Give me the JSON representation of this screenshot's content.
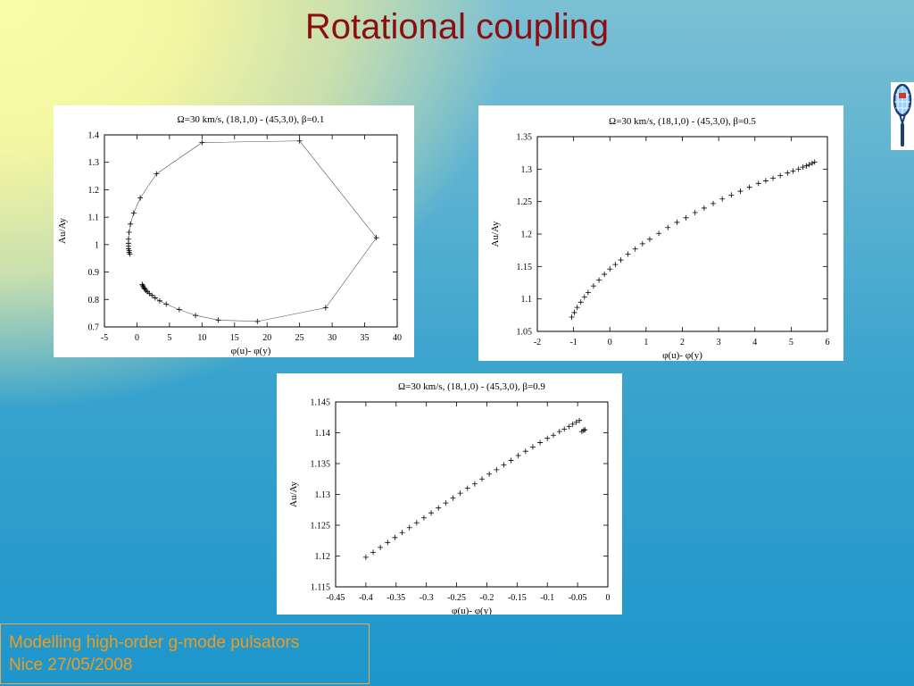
{
  "slide": {
    "title": "Rotational coupling"
  },
  "footer": {
    "line1": "Modelling high-order g-mode pulsators",
    "line2": "Nice 27/05/2008"
  },
  "logo": {
    "icon": "tennis-racket-icon"
  },
  "chart_data": [
    {
      "type": "line",
      "title": "Ω=30 km/s, (18,1,0) - (45,3,0), β=0.1",
      "xlabel": "φ(u)- φ(y)",
      "ylabel": "Au/Ay",
      "xlim": [
        -5,
        40
      ],
      "ylim": [
        0.7,
        1.4
      ],
      "xticks": [
        "-5",
        "0",
        "5",
        "10",
        "15",
        "20",
        "25",
        "30",
        "35",
        "40"
      ],
      "yticks": [
        "0.7",
        "0.8",
        "0.9",
        "1",
        "1.1",
        "1.2",
        "1.3",
        "1.4"
      ],
      "marker": "plus",
      "x": [
        0.8,
        0.9,
        1.0,
        1.1,
        1.2,
        1.4,
        1.6,
        1.9,
        2.3,
        2.8,
        3.5,
        4.5,
        6.5,
        9,
        12.5,
        18.5,
        29,
        36.8,
        25,
        10,
        3,
        0.5,
        -0.5,
        -1,
        -1.2,
        -1.3,
        -1.3,
        -1.3,
        -1.3,
        -1.2,
        -1.2,
        -1.1
      ],
      "y": [
        0.855,
        0.85,
        0.846,
        0.842,
        0.838,
        0.833,
        0.828,
        0.822,
        0.815,
        0.806,
        0.795,
        0.783,
        0.763,
        0.742,
        0.725,
        0.72,
        0.77,
        1.025,
        1.378,
        1.372,
        1.258,
        1.17,
        1.115,
        1.075,
        1.045,
        1.02,
        1.005,
        0.995,
        0.985,
        0.978,
        0.972,
        0.966
      ]
    },
    {
      "type": "line",
      "title": "Ω=30 km/s, (18,1,0) - (45,3,0), β=0.5",
      "xlabel": "φ(u)- φ(y)",
      "ylabel": "Au/Ay",
      "xlim": [
        -2,
        6
      ],
      "ylim": [
        1.05,
        1.35
      ],
      "xticks": [
        "-2",
        "-1",
        "0",
        "1",
        "2",
        "3",
        "4",
        "5",
        "6"
      ],
      "yticks": [
        "1.05",
        "1.1",
        "1.15",
        "1.2",
        "1.25",
        "1.3",
        "1.35"
      ],
      "marker": "plus",
      "x": [
        -1.05,
        -0.98,
        -0.9,
        -0.8,
        -0.7,
        -0.6,
        -0.45,
        -0.3,
        -0.15,
        0,
        0.15,
        0.3,
        0.5,
        0.7,
        0.9,
        1.1,
        1.35,
        1.6,
        1.85,
        2.1,
        2.35,
        2.6,
        2.85,
        3.1,
        3.35,
        3.6,
        3.85,
        4.1,
        4.3,
        4.5,
        4.7,
        4.9,
        5.05,
        5.2,
        5.32,
        5.42,
        5.5,
        5.58,
        5.65
      ],
      "y": [
        1.072,
        1.079,
        1.087,
        1.095,
        1.103,
        1.11,
        1.12,
        1.129,
        1.138,
        1.146,
        1.153,
        1.16,
        1.169,
        1.177,
        1.185,
        1.192,
        1.201,
        1.21,
        1.218,
        1.225,
        1.233,
        1.24,
        1.247,
        1.254,
        1.26,
        1.266,
        1.272,
        1.278,
        1.282,
        1.286,
        1.29,
        1.294,
        1.297,
        1.3,
        1.303,
        1.305,
        1.307,
        1.309,
        1.311
      ]
    },
    {
      "type": "line",
      "title": "Ω=30 km/s, (18,1,0) - (45,3,0), β=0.9",
      "xlabel": "φ(u)- φ(y)",
      "ylabel": "Au/Ay",
      "xlim": [
        -0.45,
        0
      ],
      "ylim": [
        1.115,
        1.145
      ],
      "xticks": [
        "-0.45",
        "-0.4",
        "-0.35",
        "-0.3",
        "-0.25",
        "-0.2",
        "-0.15",
        "-0.1",
        "-0.05",
        "0"
      ],
      "yticks": [
        "1.115",
        "1.12",
        "1.125",
        "1.13",
        "1.135",
        "1.14",
        "1.145"
      ],
      "marker": "plus",
      "x": [
        -0.4,
        -0.388,
        -0.376,
        -0.364,
        -0.352,
        -0.34,
        -0.328,
        -0.316,
        -0.304,
        -0.292,
        -0.28,
        -0.268,
        -0.256,
        -0.244,
        -0.232,
        -0.22,
        -0.208,
        -0.196,
        -0.184,
        -0.172,
        -0.16,
        -0.148,
        -0.136,
        -0.124,
        -0.112,
        -0.1,
        -0.09,
        -0.08,
        -0.072,
        -0.064,
        -0.058,
        -0.052,
        -0.047,
        -0.043,
        -0.04,
        -0.038
      ],
      "y": [
        1.1198,
        1.1206,
        1.1214,
        1.1222,
        1.123,
        1.1238,
        1.1246,
        1.1254,
        1.1262,
        1.127,
        1.1278,
        1.1286,
        1.1294,
        1.1302,
        1.131,
        1.1317,
        1.1325,
        1.1333,
        1.134,
        1.1348,
        1.1355,
        1.1363,
        1.137,
        1.1377,
        1.1384,
        1.1391,
        1.1396,
        1.1402,
        1.1406,
        1.141,
        1.1414,
        1.1417,
        1.142,
        1.1402,
        1.1404,
        1.1405
      ]
    }
  ]
}
